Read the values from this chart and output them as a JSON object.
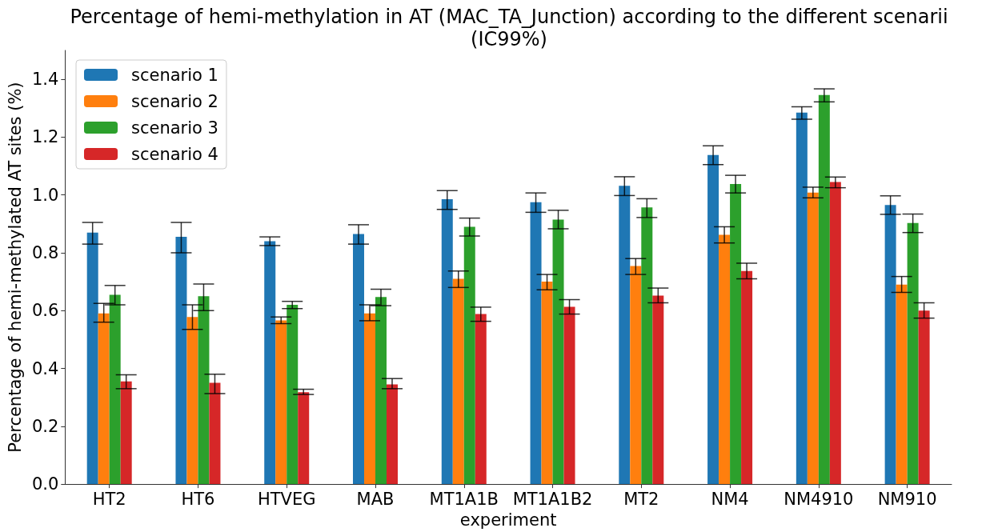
{
  "chart_data": {
    "type": "bar",
    "title": "Percentage of hemi-methylation in AT (MAC_TA_Junction) according to the different scenarii\n(IC99%)",
    "xlabel": "experiment",
    "ylabel": "Percentage of hemi-methylated AT sites (%)",
    "categories": [
      "HT2",
      "HT6",
      "HTVEG",
      "MAB",
      "MT1A1B",
      "MT1A1B2",
      "MT2",
      "NM4",
      "NM4910",
      "NM910"
    ],
    "series": [
      {
        "name": "scenario 1",
        "color": "#1f77b4",
        "values": [
          0.87,
          0.855,
          0.84,
          0.865,
          0.985,
          0.975,
          1.032,
          1.138,
          1.285,
          0.965
        ],
        "errors": [
          [
            0.83,
            0.905
          ],
          [
            0.8,
            0.905
          ],
          [
            0.825,
            0.855
          ],
          [
            0.83,
            0.897
          ],
          [
            0.95,
            1.015
          ],
          [
            0.94,
            1.007
          ],
          [
            0.998,
            1.063
          ],
          [
            1.105,
            1.17
          ],
          [
            1.262,
            1.305
          ],
          [
            0.933,
            0.997
          ]
        ]
      },
      {
        "name": "scenario 2",
        "color": "#ff7f0e",
        "values": [
          0.59,
          0.578,
          0.566,
          0.59,
          0.71,
          0.7,
          0.754,
          0.862,
          1.008,
          0.69
        ],
        "errors": [
          [
            0.56,
            0.625
          ],
          [
            0.535,
            0.62
          ],
          [
            0.555,
            0.578
          ],
          [
            0.565,
            0.62
          ],
          [
            0.68,
            0.737
          ],
          [
            0.672,
            0.725
          ],
          [
            0.725,
            0.78
          ],
          [
            0.834,
            0.89
          ],
          [
            0.99,
            1.027
          ],
          [
            0.663,
            0.718
          ]
        ]
      },
      {
        "name": "scenario 3",
        "color": "#2ca02c",
        "values": [
          0.655,
          0.65,
          0.62,
          0.647,
          0.89,
          0.915,
          0.957,
          1.038,
          1.346,
          0.903
        ],
        "errors": [
          [
            0.62,
            0.687
          ],
          [
            0.6,
            0.692
          ],
          [
            0.607,
            0.632
          ],
          [
            0.617,
            0.674
          ],
          [
            0.858,
            0.92
          ],
          [
            0.883,
            0.947
          ],
          [
            0.922,
            0.987
          ],
          [
            1.007,
            1.068
          ],
          [
            1.322,
            1.367
          ],
          [
            0.87,
            0.934
          ]
        ]
      },
      {
        "name": "scenario 4",
        "color": "#d62728",
        "values": [
          0.355,
          0.35,
          0.318,
          0.345,
          0.588,
          0.613,
          0.652,
          0.737,
          1.045,
          0.6
        ],
        "errors": [
          [
            0.33,
            0.378
          ],
          [
            0.313,
            0.38
          ],
          [
            0.31,
            0.328
          ],
          [
            0.33,
            0.365
          ],
          [
            0.563,
            0.612
          ],
          [
            0.588,
            0.638
          ],
          [
            0.627,
            0.678
          ],
          [
            0.71,
            0.764
          ],
          [
            1.025,
            1.062
          ],
          [
            0.574,
            0.627
          ]
        ]
      }
    ],
    "ylim": [
      0,
      1.5
    ],
    "yticks": [
      {
        "value": 0,
        "label": "0.0"
      },
      {
        "value": 0.2,
        "label": "0.2"
      },
      {
        "value": 0.4,
        "label": "0.4"
      },
      {
        "value": 0.6,
        "label": "0.6"
      },
      {
        "value": 0.8,
        "label": "0.8"
      },
      {
        "value": 1.0,
        "label": "1.0"
      },
      {
        "value": 1.2,
        "label": "1.2"
      },
      {
        "value": 1.4,
        "label": "1.4"
      }
    ],
    "legend": "top left",
    "grid": false
  }
}
